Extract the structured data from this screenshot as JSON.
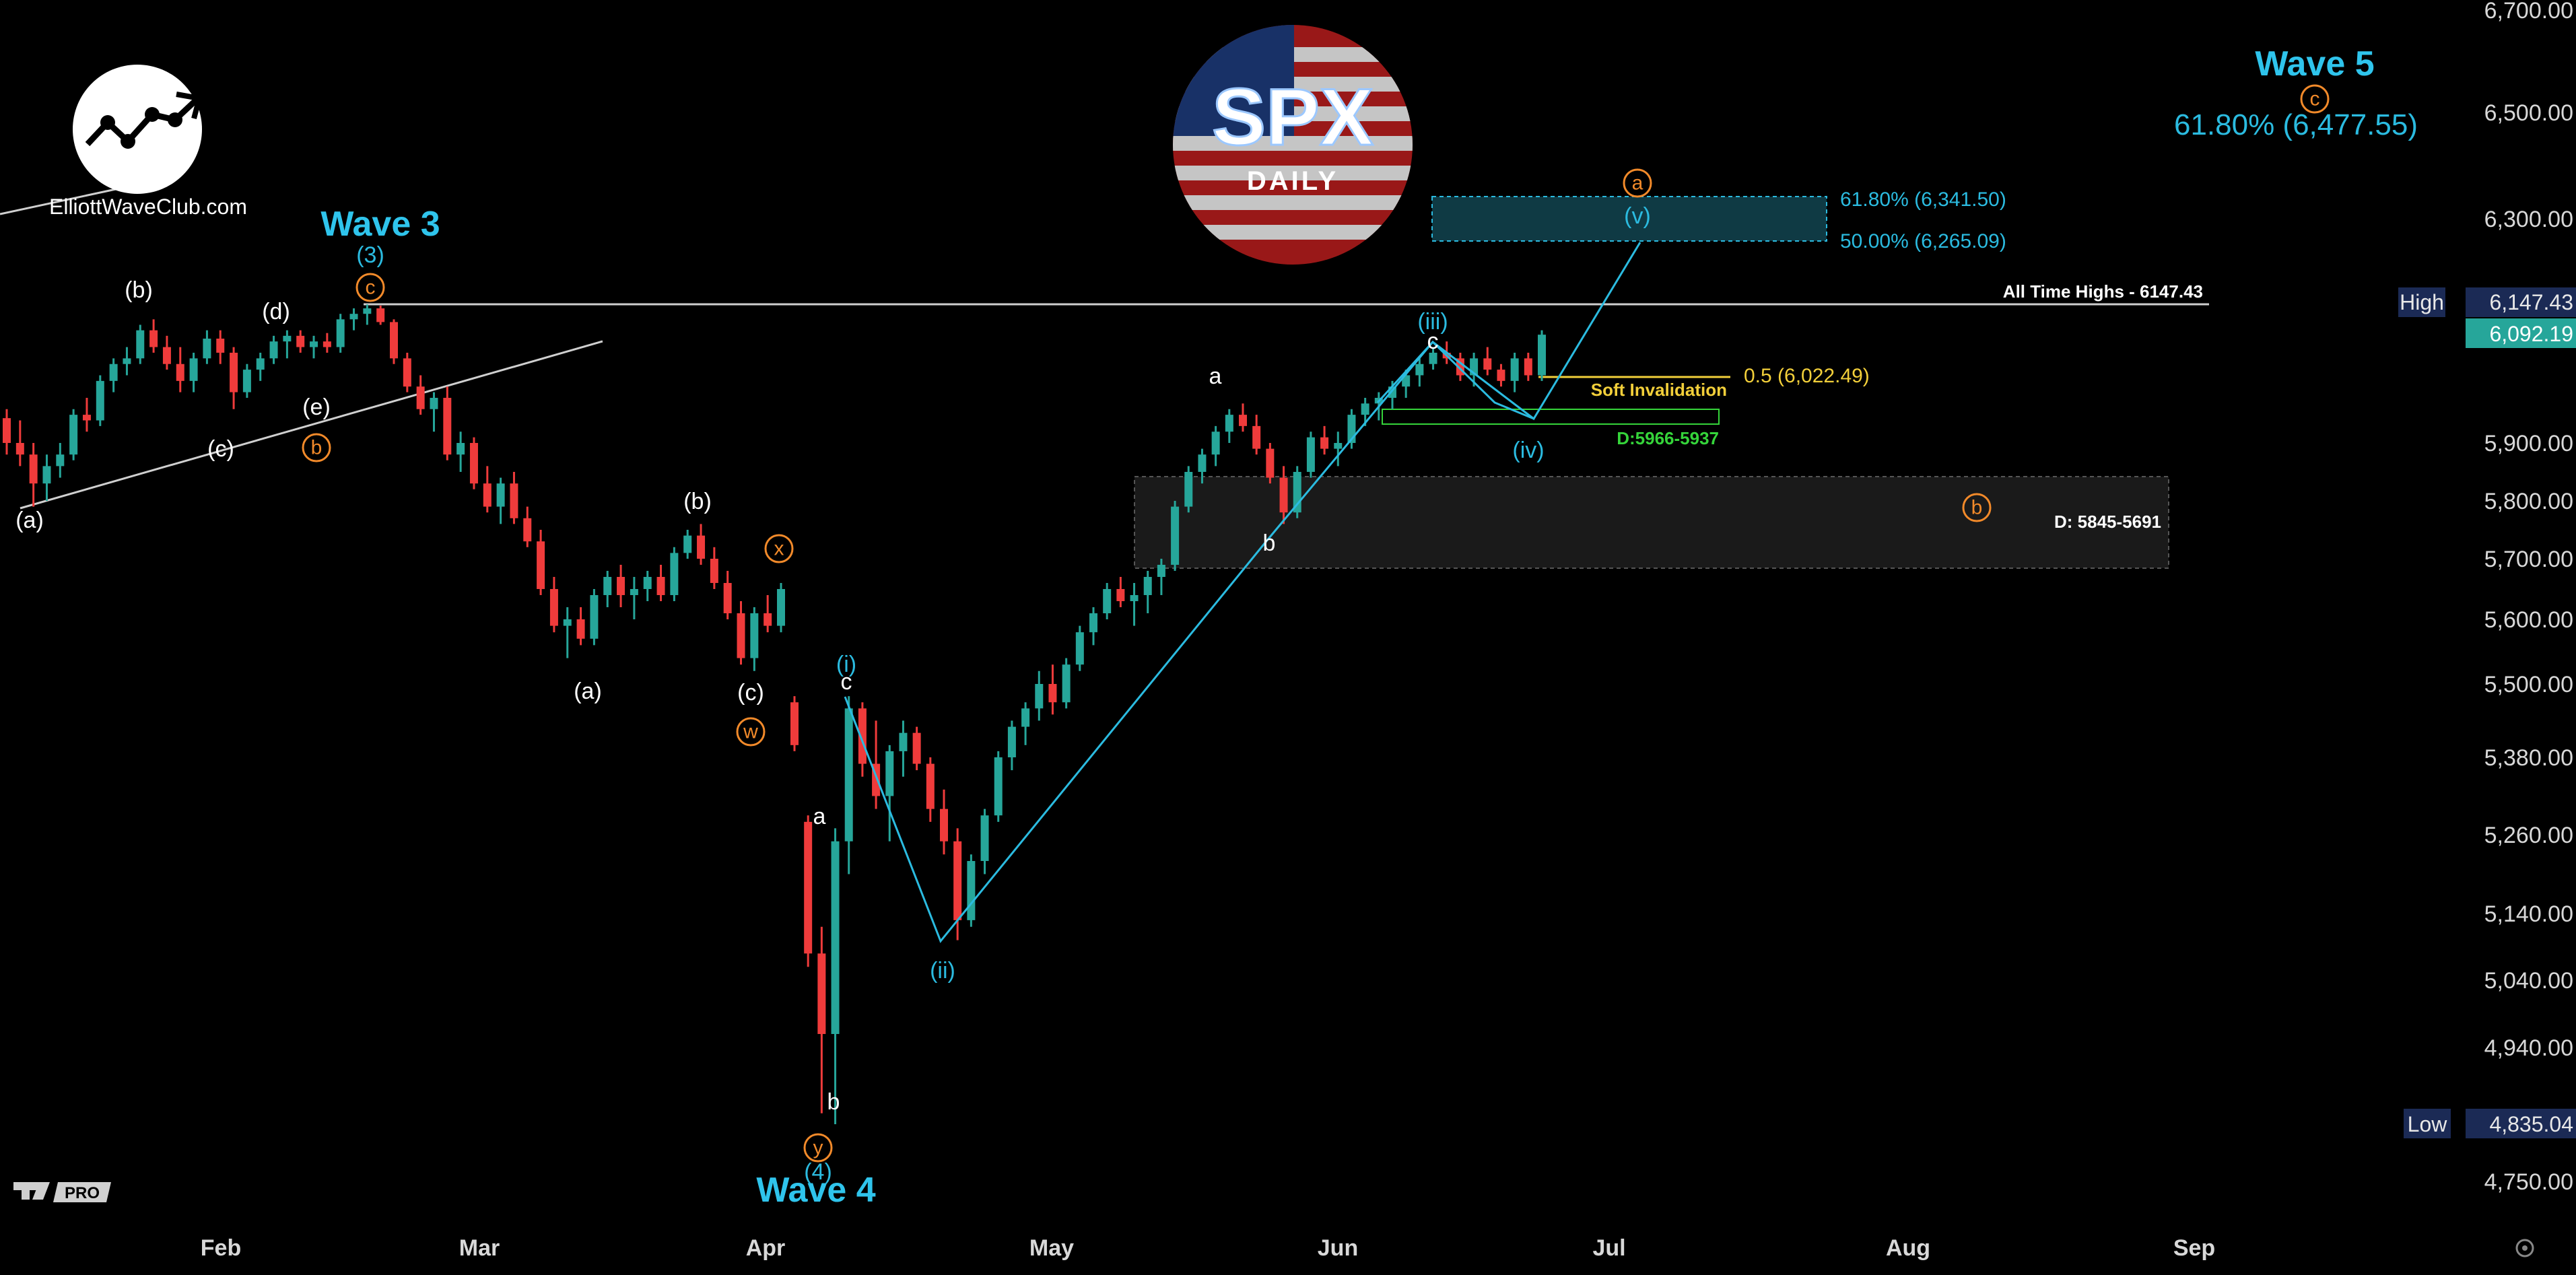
{
  "branding": {
    "site": "ElliottWaveClub.com",
    "ticker_badge": "SPX",
    "badge_sub": "DAILY",
    "platform_badge": "PRO"
  },
  "colors": {
    "bull": "#26a69a",
    "bear": "#ef3b3b",
    "wave_blue": "#2bbbe0",
    "wave_orange": "#f28a2a",
    "invalidation": "#f2cf3a",
    "support_green": "#35d43a"
  },
  "chart_data": {
    "type": "candlestick",
    "title": "SPX DAILY",
    "ylim": [
      4700,
      6700
    ],
    "x_months": [
      "Feb",
      "Mar",
      "Apr",
      "May",
      "Jun",
      "Jul",
      "Aug",
      "Sep"
    ],
    "y_ticks": [
      "6,700.00",
      "6,500.00",
      "6,300.00",
      "5,900.00",
      "5,800.00",
      "5,700.00",
      "5,600.00",
      "5,500.00",
      "5,380.00",
      "5,260.00",
      "5,140.00",
      "5,040.00",
      "4,940.00",
      "4,750.00"
    ],
    "high_label": "High",
    "high_value": "6,147.43",
    "last_value": "6,092.19",
    "low_label": "Low",
    "low_value": "4,835.04",
    "candles": [
      [
        5944,
        5960,
        5880,
        5900
      ],
      [
        5900,
        5940,
        5860,
        5880
      ],
      [
        5880,
        5900,
        5790,
        5830
      ],
      [
        5830,
        5880,
        5800,
        5860
      ],
      [
        5860,
        5900,
        5840,
        5880
      ],
      [
        5880,
        5960,
        5870,
        5950
      ],
      [
        5950,
        5980,
        5920,
        5940
      ],
      [
        5940,
        6020,
        5930,
        6010
      ],
      [
        6010,
        6050,
        5990,
        6040
      ],
      [
        6040,
        6070,
        6020,
        6050
      ],
      [
        6050,
        6110,
        6040,
        6100
      ],
      [
        6100,
        6120,
        6060,
        6070
      ],
      [
        6070,
        6090,
        6030,
        6040
      ],
      [
        6040,
        6070,
        5990,
        6010
      ],
      [
        6010,
        6060,
        5990,
        6050
      ],
      [
        6050,
        6100,
        6040,
        6085
      ],
      [
        6085,
        6100,
        6040,
        6060
      ],
      [
        6060,
        6070,
        5960,
        5990
      ],
      [
        5990,
        6040,
        5980,
        6030
      ],
      [
        6030,
        6060,
        6010,
        6050
      ],
      [
        6050,
        6090,
        6040,
        6080
      ],
      [
        6080,
        6100,
        6050,
        6090
      ],
      [
        6090,
        6100,
        6060,
        6070
      ],
      [
        6070,
        6090,
        6050,
        6080
      ],
      [
        6080,
        6095,
        6060,
        6070
      ],
      [
        6070,
        6130,
        6060,
        6120
      ],
      [
        6120,
        6140,
        6100,
        6130
      ],
      [
        6130,
        6147,
        6110,
        6140
      ],
      [
        6140,
        6145,
        6110,
        6115
      ],
      [
        6115,
        6120,
        6040,
        6050
      ],
      [
        6050,
        6060,
        5990,
        6000
      ],
      [
        6000,
        6020,
        5950,
        5960
      ],
      [
        5960,
        5990,
        5920,
        5980
      ],
      [
        5980,
        6000,
        5870,
        5880
      ],
      [
        5880,
        5920,
        5850,
        5900
      ],
      [
        5900,
        5910,
        5820,
        5830
      ],
      [
        5830,
        5860,
        5780,
        5790
      ],
      [
        5790,
        5840,
        5760,
        5830
      ],
      [
        5830,
        5850,
        5760,
        5770
      ],
      [
        5770,
        5790,
        5720,
        5730
      ],
      [
        5730,
        5750,
        5640,
        5650
      ],
      [
        5650,
        5670,
        5580,
        5590
      ],
      [
        5590,
        5620,
        5540,
        5600
      ],
      [
        5600,
        5620,
        5560,
        5570
      ],
      [
        5570,
        5650,
        5560,
        5640
      ],
      [
        5640,
        5680,
        5620,
        5670
      ],
      [
        5670,
        5690,
        5620,
        5640
      ],
      [
        5640,
        5670,
        5600,
        5650
      ],
      [
        5650,
        5680,
        5630,
        5670
      ],
      [
        5670,
        5690,
        5630,
        5640
      ],
      [
        5640,
        5720,
        5630,
        5710
      ],
      [
        5710,
        5750,
        5700,
        5740
      ],
      [
        5740,
        5760,
        5690,
        5700
      ],
      [
        5700,
        5720,
        5650,
        5660
      ],
      [
        5660,
        5680,
        5600,
        5610
      ],
      [
        5610,
        5630,
        5530,
        5540
      ],
      [
        5540,
        5620,
        5520,
        5610
      ],
      [
        5610,
        5640,
        5580,
        5590
      ],
      [
        5590,
        5660,
        5580,
        5650
      ],
      [
        5470,
        5480,
        5390,
        5400
      ],
      [
        5280,
        5290,
        5060,
        5080
      ],
      [
        5080,
        5120,
        4850,
        4960
      ],
      [
        4960,
        5270,
        4835,
        5250
      ],
      [
        5250,
        5480,
        5200,
        5460
      ],
      [
        5460,
        5470,
        5350,
        5370
      ],
      [
        5370,
        5440,
        5300,
        5320
      ],
      [
        5320,
        5400,
        5250,
        5390
      ],
      [
        5390,
        5440,
        5350,
        5420
      ],
      [
        5420,
        5430,
        5360,
        5370
      ],
      [
        5370,
        5380,
        5280,
        5300
      ],
      [
        5300,
        5330,
        5230,
        5250
      ],
      [
        5250,
        5270,
        5100,
        5130
      ],
      [
        5130,
        5230,
        5120,
        5220
      ],
      [
        5220,
        5300,
        5200,
        5290
      ],
      [
        5290,
        5390,
        5280,
        5380
      ],
      [
        5380,
        5440,
        5360,
        5430
      ],
      [
        5430,
        5470,
        5400,
        5460
      ],
      [
        5460,
        5520,
        5440,
        5500
      ],
      [
        5500,
        5530,
        5450,
        5470
      ],
      [
        5470,
        5540,
        5460,
        5530
      ],
      [
        5530,
        5590,
        5520,
        5580
      ],
      [
        5580,
        5620,
        5560,
        5610
      ],
      [
        5610,
        5660,
        5600,
        5650
      ],
      [
        5650,
        5670,
        5620,
        5630
      ],
      [
        5630,
        5660,
        5590,
        5640
      ],
      [
        5640,
        5680,
        5610,
        5670
      ],
      [
        5670,
        5700,
        5640,
        5690
      ],
      [
        5690,
        5800,
        5680,
        5790
      ],
      [
        5790,
        5860,
        5780,
        5850
      ],
      [
        5850,
        5890,
        5830,
        5880
      ],
      [
        5880,
        5930,
        5860,
        5920
      ],
      [
        5920,
        5960,
        5900,
        5950
      ],
      [
        5950,
        5970,
        5920,
        5930
      ],
      [
        5930,
        5950,
        5880,
        5890
      ],
      [
        5890,
        5900,
        5830,
        5840
      ],
      [
        5840,
        5860,
        5760,
        5780
      ],
      [
        5780,
        5860,
        5770,
        5850
      ],
      [
        5850,
        5920,
        5840,
        5910
      ],
      [
        5910,
        5930,
        5880,
        5890
      ],
      [
        5890,
        5920,
        5860,
        5900
      ],
      [
        5900,
        5960,
        5890,
        5950
      ],
      [
        5950,
        5980,
        5930,
        5970
      ],
      [
        5970,
        5990,
        5940,
        5980
      ],
      [
        5980,
        6010,
        5960,
        6000
      ],
      [
        6000,
        6030,
        5980,
        6020
      ],
      [
        6020,
        6050,
        6000,
        6040
      ],
      [
        6040,
        6070,
        6030,
        6060
      ],
      [
        6060,
        6080,
        6040,
        6050
      ],
      [
        6050,
        6060,
        6010,
        6020
      ],
      [
        6020,
        6060,
        6000,
        6050
      ],
      [
        6050,
        6070,
        6020,
        6030
      ],
      [
        6030,
        6040,
        6000,
        6010
      ],
      [
        6010,
        6060,
        5990,
        6050
      ],
      [
        6050,
        6060,
        6010,
        6020
      ],
      [
        6020,
        6100,
        6010,
        6092
      ]
    ],
    "annotations": {
      "ath": "All Time Highs - 6147.43",
      "fib_618": "61.80% (6,341.50)",
      "fib_50": "50.00% (6,265.09)",
      "wave5_target": "61.80% (6,477.55)",
      "invalidation_fib": "0.5 (6,022.49)",
      "invalidation_text": "Soft Invalidation",
      "support_d": "D:5966-5937",
      "zone_d": "D: 5845-5691"
    },
    "wave_labels": {
      "wave3": "Wave 3",
      "wave4": "Wave 4",
      "wave5": "Wave 5",
      "w3_num": "(3)",
      "w4_num": "(4)",
      "i": "(i)",
      "ii": "(ii)",
      "iii": "(iii)",
      "iv": "(iv)",
      "v": "(v)",
      "a": "a",
      "b": "b",
      "c": "c",
      "pa": "(a)",
      "pb": "(b)",
      "pc": "(c)",
      "pd": "(d)",
      "pe": "(e)",
      "oa": "a",
      "ob": "b",
      "oc": "c",
      "ow": "w",
      "ox": "x",
      "oy": "y"
    }
  }
}
